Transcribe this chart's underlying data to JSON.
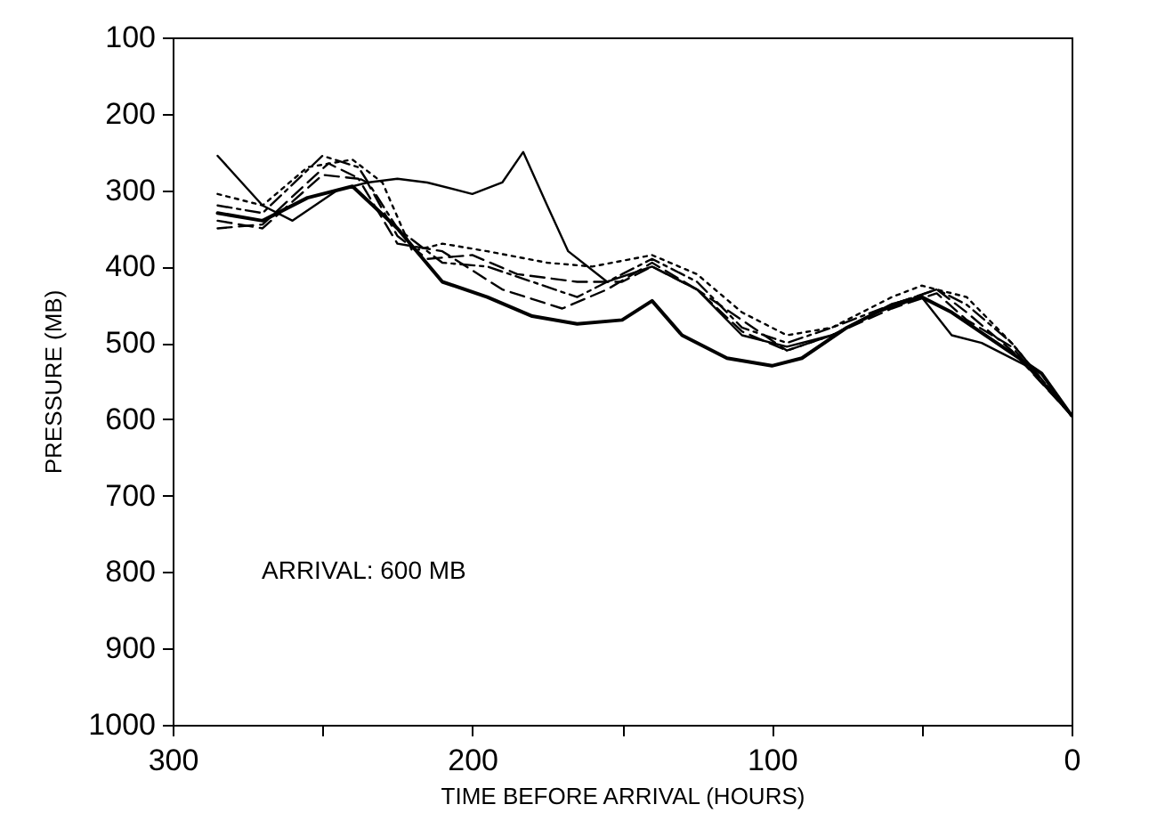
{
  "chart_data": {
    "type": "line",
    "xlabel": "TIME BEFORE ARRIVAL (HOURS)",
    "ylabel": "PRESSURE (MB)",
    "annotations": [
      "ARRIVAL: 600 MB"
    ],
    "xlim": [
      300,
      0
    ],
    "xticks": [
      300,
      {
        "value": 250,
        "label": null
      },
      200,
      {
        "value": 150,
        "label": null
      },
      100,
      {
        "value": 50,
        "label": null
      },
      0
    ],
    "ylim": [
      1000,
      100
    ],
    "yticks": [
      100,
      200,
      300,
      400,
      500,
      600,
      700,
      800,
      900,
      1000
    ],
    "marker": "none",
    "series": [
      {
        "color": "#000000",
        "line_style": "solid",
        "x": [
          285,
          270,
          260,
          245,
          235,
          225,
          215,
          200,
          190,
          183,
          175,
          168,
          155,
          140,
          125,
          110,
          95,
          80,
          65,
          50,
          40,
          30,
          15,
          0
        ],
        "values": [
          255,
          320,
          340,
          300,
          290,
          285,
          290,
          305,
          290,
          250,
          320,
          380,
          420,
          400,
          430,
          490,
          505,
          490,
          460,
          440,
          490,
          500,
          530,
          595
        ]
      },
      {
        "color": "#000000",
        "line_style": "solid",
        "x": [
          285,
          270,
          255,
          240,
          225,
          210,
          195,
          180,
          165,
          150,
          140,
          130,
          115,
          100,
          90,
          75,
          60,
          50,
          40,
          25,
          10,
          0
        ],
        "values": [
          330,
          340,
          310,
          295,
          350,
          420,
          440,
          465,
          475,
          470,
          445,
          490,
          520,
          530,
          520,
          480,
          450,
          440,
          460,
          500,
          540,
          595
        ]
      },
      {
        "color": "#000000",
        "line_style": "dashed",
        "x": [
          285,
          270,
          255,
          248,
          235,
          225,
          215,
          200,
          185,
          165,
          150,
          140,
          125,
          110,
          95,
          80,
          60,
          45,
          35,
          20,
          0
        ],
        "values": [
          350,
          345,
          290,
          265,
          290,
          360,
          390,
          385,
          410,
          420,
          420,
          400,
          430,
          470,
          510,
          490,
          450,
          430,
          460,
          510,
          595
        ]
      },
      {
        "color": "#000000",
        "line_style": "dotted",
        "x": [
          285,
          270,
          255,
          240,
          230,
          220,
          210,
          195,
          175,
          160,
          140,
          125,
          110,
          95,
          80,
          60,
          50,
          35,
          20,
          0
        ],
        "values": [
          305,
          320,
          270,
          260,
          290,
          380,
          370,
          380,
          395,
          400,
          385,
          410,
          460,
          490,
          480,
          440,
          425,
          440,
          500,
          595
        ]
      },
      {
        "color": "#000000",
        "line_style": "dashdot",
        "x": [
          285,
          270,
          250,
          238,
          225,
          210,
          195,
          180,
          165,
          150,
          140,
          125,
          110,
          95,
          80,
          60,
          45,
          35,
          20,
          0
        ],
        "values": [
          320,
          330,
          255,
          270,
          350,
          395,
          400,
          420,
          440,
          410,
          390,
          420,
          480,
          500,
          480,
          450,
          430,
          450,
          500,
          595
        ]
      },
      {
        "color": "#000000",
        "line_style": "dashed",
        "x": [
          285,
          270,
          250,
          238,
          225,
          210,
          190,
          170,
          155,
          140,
          125,
          110,
          95,
          80,
          60,
          45,
          35,
          20,
          0
        ],
        "values": [
          340,
          350,
          280,
          285,
          370,
          380,
          430,
          455,
          430,
          395,
          430,
          485,
          510,
          490,
          455,
          435,
          470,
          505,
          595
        ]
      }
    ]
  }
}
